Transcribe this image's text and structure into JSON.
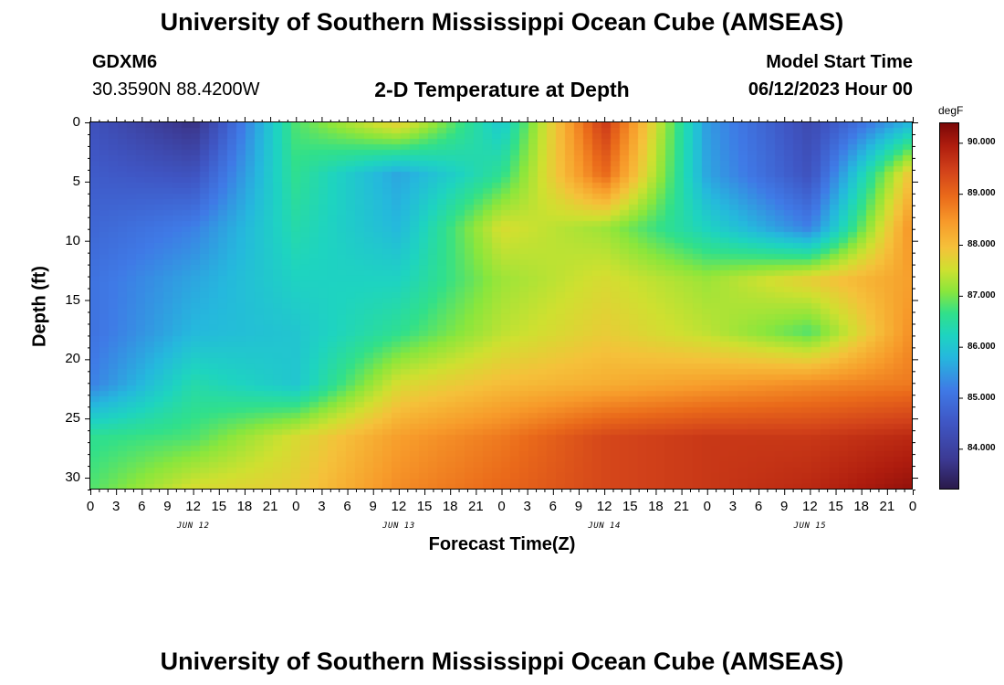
{
  "header": {
    "title": "University of Southern Mississippi Ocean Cube (AMSEAS)",
    "station": "GDXM6",
    "coords": "30.3590N  88.4200W",
    "subtitle": "2-D Temperature at Depth",
    "model_label": "Model Start Time",
    "model_time": "06/12/2023 Hour 00"
  },
  "footer": {
    "title": "University of Southern Mississippi Ocean Cube (AMSEAS)"
  },
  "chart_data": {
    "type": "heatmap",
    "title": "2-D Temperature at Depth",
    "xlabel": "Forecast Time(Z)",
    "ylabel": "Depth (ft)",
    "colorbar_unit": "degF",
    "x_hours": [
      0,
      12,
      24,
      36,
      48,
      60,
      72,
      84,
      96
    ],
    "x_tick_labels": [
      "0",
      "3",
      "6",
      "9",
      "12",
      "15",
      "18",
      "21",
      "0",
      "3",
      "6",
      "9",
      "12",
      "15",
      "18",
      "21",
      "0",
      "3",
      "6",
      "9",
      "12",
      "15",
      "18",
      "21",
      "0",
      "3",
      "6",
      "9",
      "12",
      "15",
      "18",
      "21",
      "0"
    ],
    "date_labels": [
      "JUN 12",
      "JUN 13",
      "JUN 14",
      "JUN 15"
    ],
    "y_depths_ft": [
      0,
      5,
      10,
      15,
      20,
      25,
      30
    ],
    "y_tick_labels": [
      "0",
      "5",
      "10",
      "15",
      "20",
      "25",
      "30"
    ],
    "ylim": [
      0,
      31
    ],
    "xlim": [
      0,
      96
    ],
    "colorbar_ticks": [
      "90.000",
      "89.000",
      "88.000",
      "87.000",
      "86.000",
      "85.000",
      "84.000"
    ],
    "colorbar_range": [
      83.2,
      90.4
    ],
    "temperature_degF": [
      [
        84.4,
        83.6,
        86.8,
        87.8,
        86.0,
        89.6,
        85.5,
        84.2,
        85.8
      ],
      [
        84.6,
        84.4,
        86.6,
        85.6,
        86.6,
        89.0,
        85.6,
        84.4,
        88.0
      ],
      [
        84.8,
        85.2,
        86.4,
        85.8,
        87.6,
        87.2,
        86.2,
        85.2,
        88.6
      ],
      [
        85.0,
        85.6,
        86.2,
        86.2,
        87.2,
        87.6,
        87.2,
        87.8,
        88.4
      ],
      [
        85.0,
        85.8,
        86.0,
        86.6,
        87.4,
        87.8,
        87.4,
        86.8,
        88.6
      ],
      [
        85.2,
        86.4,
        86.0,
        87.6,
        88.0,
        88.2,
        88.4,
        88.6,
        88.8
      ],
      [
        86.6,
        86.8,
        87.6,
        88.4,
        88.8,
        89.4,
        89.6,
        89.6,
        89.8
      ],
      [
        86.8,
        87.6,
        87.8,
        88.6,
        89.0,
        89.4,
        89.6,
        89.8,
        90.2
      ]
    ],
    "grid_depths_ft": [
      0,
      4.4,
      8.9,
      13.3,
      17.7,
      22.1,
      26.6,
      31
    ]
  }
}
